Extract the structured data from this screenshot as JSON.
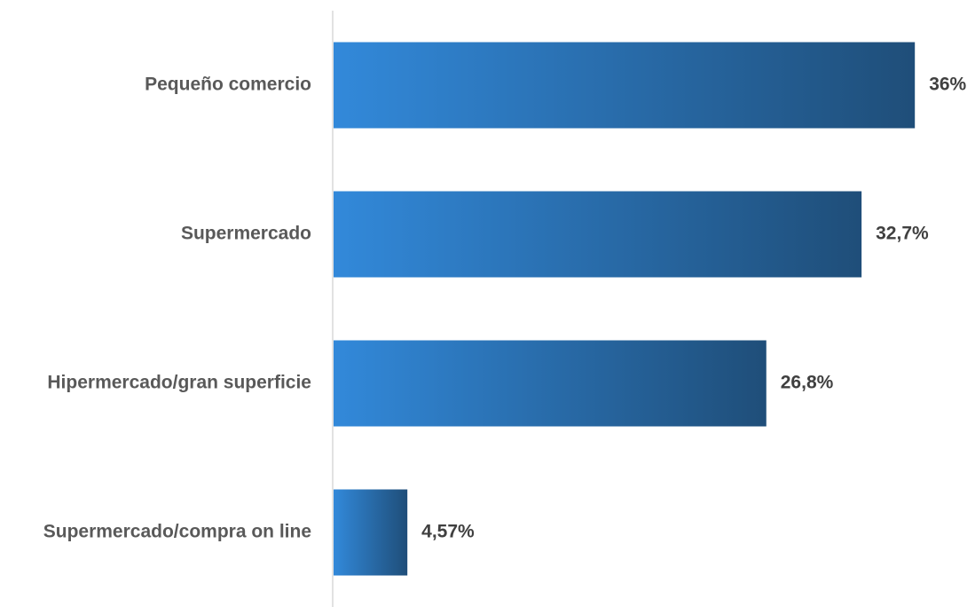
{
  "chart_data": {
    "type": "bar",
    "orientation": "horizontal",
    "categories": [
      "Pequeño comercio",
      "Supermercado",
      "Hipermercado/gran superficie",
      "Supermercado/compra on line"
    ],
    "values": [
      36,
      32.7,
      26.8,
      4.57
    ],
    "value_labels": [
      "36%",
      "32,7%",
      "26,8%",
      "4,57%"
    ],
    "unit": "%",
    "title": "",
    "xlabel": "",
    "ylabel": "",
    "xlim": [
      0,
      40
    ],
    "grid": false,
    "legend": "none",
    "colors": {
      "bar_gradient_start": "#3289DA",
      "bar_gradient_end": "#1F4E79",
      "axis": "#D9D9D9",
      "category_text": "#595959",
      "value_text": "#404040"
    }
  }
}
